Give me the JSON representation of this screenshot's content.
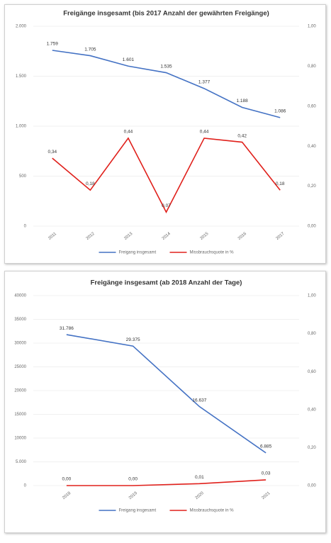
{
  "chart_data": [
    {
      "type": "line",
      "title": "Freigänge insgesamt (bis 2017 Anzahl der gewährten Freigänge)",
      "categories": [
        "2011",
        "2012",
        "2013",
        "2014",
        "2015",
        "2016",
        "2017"
      ],
      "series": [
        {
          "name": "Freigang insgesamt",
          "color": "#4472c4",
          "values": [
            1759,
            1705,
            1601,
            1535,
            1377,
            1188,
            1086
          ],
          "value_labels": [
            "1.759",
            "1.705",
            "1.601",
            "1.535",
            "1.377",
            "1.188",
            "1.086"
          ]
        },
        {
          "name": "Missbrauchsquote in %",
          "color": "#e0201b",
          "axis": "y2",
          "values": [
            0.34,
            0.18,
            0.44,
            0.07,
            0.44,
            0.42,
            0.18
          ],
          "value_labels": [
            "0,34",
            "0,18",
            "0,44",
            "0,07",
            "0,44",
            "0,42",
            "0,18"
          ]
        }
      ],
      "ylim": [
        0,
        2000
      ],
      "yticks": [
        0,
        500,
        {
          "value": 1000,
          "label": "1.000"
        },
        {
          "value": 1500,
          "label": "1.500"
        },
        {
          "value": 2000,
          "label": "2.000"
        }
      ],
      "y2lim": [
        0,
        1
      ],
      "y2ticks": [
        {
          "value": 0,
          "label": "0,00"
        },
        {
          "value": 0.2,
          "label": "0,20"
        },
        {
          "value": 0.4,
          "label": "0,40"
        },
        {
          "value": 0.6,
          "label": "0,60"
        },
        {
          "value": 0.8,
          "label": "0,80"
        },
        {
          "value": 1,
          "label": "1,00"
        }
      ],
      "grid": true
    },
    {
      "type": "line",
      "title": "Freigänge insgesamt (ab 2018 Anzahl der Tage)",
      "categories": [
        "2018",
        "2019",
        "2020",
        "2021"
      ],
      "series": [
        {
          "name": "Freigang insgesamt",
          "color": "#4472c4",
          "values": [
            31786,
            29375,
            16637,
            6885
          ],
          "value_labels": [
            "31.786",
            "29.375",
            "16.637",
            "6.885"
          ]
        },
        {
          "name": "Missbrauchsquote in %",
          "color": "#e0201b",
          "axis": "y2",
          "values": [
            0,
            0,
            0.01,
            0.03
          ],
          "value_labels": [
            "0,00",
            "0,00",
            "0,01",
            "0,03"
          ]
        }
      ],
      "ylim": [
        0,
        40000
      ],
      "yticks": [
        0,
        {
          "value": 5000,
          "label": "5.000"
        },
        10000,
        15000,
        20000,
        25000,
        30000,
        35000,
        40000
      ],
      "y2lim": [
        0,
        1
      ],
      "y2ticks": [
        {
          "value": 0,
          "label": "0,00"
        },
        {
          "value": 0.2,
          "label": "0,20"
        },
        {
          "value": 0.4,
          "label": "0,40"
        },
        {
          "value": 0.6,
          "label": "0,60"
        },
        {
          "value": 0.8,
          "label": "0,80"
        },
        {
          "value": 1,
          "label": "1,00"
        }
      ],
      "grid": true
    }
  ]
}
